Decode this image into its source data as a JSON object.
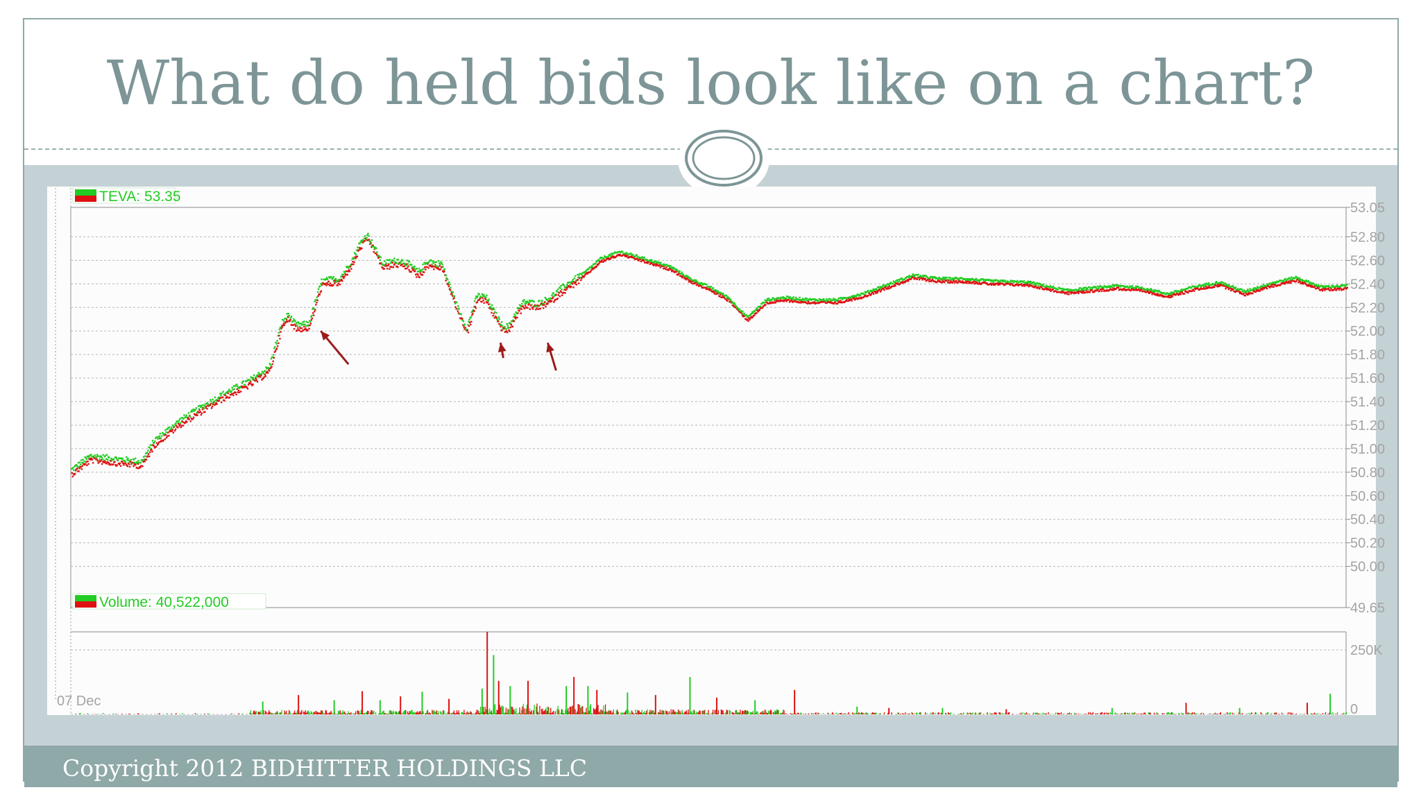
{
  "slide": {
    "title": "What do held bids look like on a chart?",
    "footer": "Copyright 2012 BIDHITTER HOLDINGS LLC"
  },
  "colors": {
    "accent": "#8fa8a8",
    "band": "#c5d2d5",
    "title": "#7d9596",
    "up": "#22cc22",
    "down": "#dd1111",
    "arrow": "#9b1b1b"
  },
  "chart_data": [
    {
      "type": "scatter",
      "name": "price",
      "legend": "TEVA: 53.35",
      "x_start_label": "07 Dec",
      "y_ticks": [
        "53.05",
        "52.80",
        "52.60",
        "52.40",
        "52.20",
        "52.00",
        "51.80",
        "51.60",
        "51.40",
        "51.20",
        "51.00",
        "50.80",
        "50.60",
        "50.40",
        "50.20",
        "50.00",
        "49.65"
      ],
      "ylim": [
        49.65,
        53.05
      ],
      "xlim": [
        0,
        100
      ],
      "grid": true,
      "path_x": [
        0,
        1.5,
        3,
        5.5,
        6.5,
        8.5,
        10,
        12,
        14,
        15.5,
        16.5,
        17,
        17.6,
        18.6,
        19.6,
        20.4,
        21,
        22,
        22.6,
        23.2,
        23.8,
        24.4,
        25,
        25.6,
        26.3,
        27.2,
        28,
        28.6,
        29,
        29.6,
        30.2,
        31,
        31.8,
        32.5,
        33.1,
        33.8,
        34.3,
        34.9,
        35.5,
        36.5,
        37.5,
        38.5,
        40,
        41.5,
        43,
        44.3,
        45.5,
        47,
        48.5,
        50,
        51.5,
        53,
        54.5,
        56,
        58,
        60,
        62,
        64,
        66,
        68,
        70,
        72,
        75,
        78,
        80,
        82,
        84,
        86,
        88,
        90,
        92,
        94,
        96,
        98,
        100
      ],
      "path_y": [
        50.8,
        50.92,
        50.9,
        50.87,
        51.05,
        51.22,
        51.32,
        51.45,
        51.56,
        51.67,
        52.05,
        52.12,
        52.03,
        52.04,
        52.4,
        52.42,
        52.42,
        52.58,
        52.72,
        52.8,
        52.68,
        52.55,
        52.57,
        52.58,
        52.56,
        52.48,
        52.58,
        52.55,
        52.56,
        52.38,
        52.2,
        52.0,
        52.28,
        52.27,
        52.15,
        52.02,
        52.02,
        52.15,
        52.23,
        52.21,
        52.26,
        52.35,
        52.46,
        52.6,
        52.66,
        52.62,
        52.58,
        52.53,
        52.43,
        52.36,
        52.27,
        52.1,
        52.25,
        52.27,
        52.25,
        52.25,
        52.3,
        52.38,
        52.46,
        52.43,
        52.43,
        52.41,
        52.4,
        52.33,
        52.35,
        52.37,
        52.35,
        52.3,
        52.36,
        52.4,
        52.32,
        52.39,
        52.44,
        52.36,
        52.37
      ],
      "arrows_at": [
        [
          19.6,
          52.0
        ],
        [
          33.7,
          51.9
        ],
        [
          37.4,
          51.9
        ]
      ]
    },
    {
      "type": "bar",
      "name": "volume",
      "legend": "Volume: 40,522,000",
      "y_ticks": [
        "250K",
        "0"
      ],
      "ylim": [
        0,
        320000
      ],
      "spikes_x": [
        15,
        17.8,
        20.6,
        22.8,
        24.2,
        25.8,
        27.5,
        29.6,
        32.2,
        32.6,
        33.1,
        33.5,
        34.4,
        35.8,
        38.8,
        39.4,
        40.5,
        41.2,
        43.6,
        45.8,
        48.5,
        50.6,
        53.6,
        56.7,
        61.6,
        64.1,
        68.3,
        73.3,
        81.6,
        87.4,
        91.6,
        96.9,
        98.7
      ],
      "spikes_v": [
        50000,
        75000,
        55000,
        90000,
        55000,
        70000,
        88000,
        60000,
        100000,
        320000,
        230000,
        130000,
        110000,
        130000,
        110000,
        145000,
        110000,
        95000,
        85000,
        75000,
        145000,
        65000,
        55000,
        95000,
        30000,
        25000,
        25000,
        20000,
        25000,
        45000,
        25000,
        45000,
        80000
      ]
    }
  ]
}
